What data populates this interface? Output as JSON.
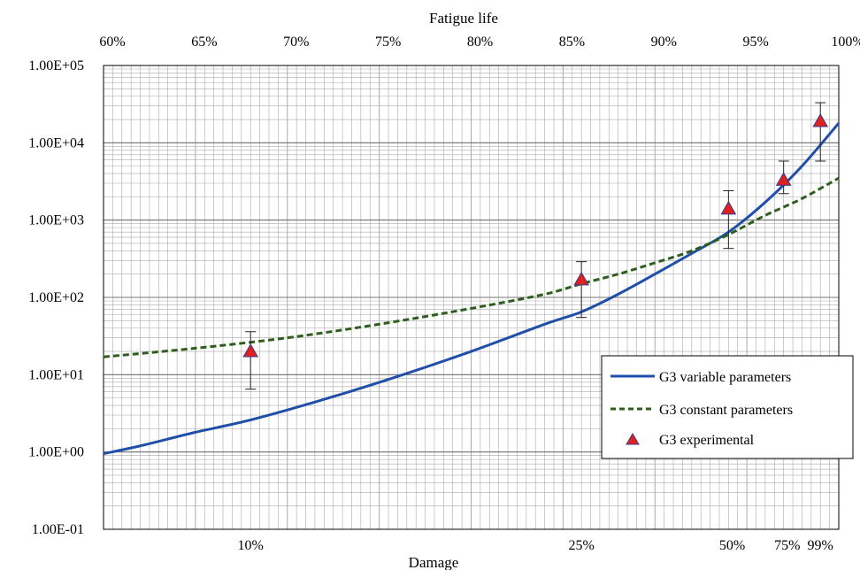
{
  "chart_data": {
    "type": "line",
    "xlabel_top": "Fatigue life",
    "xlabel_bottom": "Damage",
    "ylabel": "",
    "y_scale": "log",
    "ylim": [
      0.1,
      100000
    ],
    "xlim": [
      0.6,
      1.0
    ],
    "grid": true,
    "legend_position": "bottom-right",
    "yticks": [
      0.1,
      1,
      10,
      100,
      1000,
      10000,
      100000
    ],
    "ytick_labels": [
      "1.00E-01",
      "1.00E+00",
      "1.00E+01",
      "1.00E+02",
      "1.00E+03",
      "1.00E+04",
      "1.00E+05"
    ],
    "xticks_top": [
      0.6,
      0.65,
      0.7,
      0.75,
      0.8,
      0.85,
      0.9,
      0.95,
      1.0
    ],
    "xtick_labels_top": [
      "60%",
      "65%",
      "70%",
      "75%",
      "80%",
      "85%",
      "90%",
      "95%",
      "100%"
    ],
    "xticks_bottom": [
      0.68,
      0.86,
      0.942,
      0.972,
      0.99
    ],
    "xtick_labels_bottom": [
      "10%",
      "25%",
      "50%",
      "75%",
      "99%"
    ],
    "series": [
      {
        "name": "G3 variable parameters",
        "style": "solid",
        "color": "#1f4fa8",
        "x": [
          0.6,
          0.62,
          0.65,
          0.68,
          0.72,
          0.76,
          0.8,
          0.84,
          0.86,
          0.88,
          0.9,
          0.92,
          0.94,
          0.96,
          0.98,
          1.0
        ],
        "y": [
          0.95,
          1.2,
          1.8,
          2.6,
          4.8,
          9.5,
          20,
          45,
          65,
          110,
          200,
          370,
          700,
          1700,
          5000,
          18000
        ]
      },
      {
        "name": "G3 constant parameters",
        "style": "dashed",
        "color": "#2e5e1e",
        "x": [
          0.6,
          0.65,
          0.7,
          0.75,
          0.8,
          0.84,
          0.86,
          0.88,
          0.9,
          0.92,
          0.94,
          0.96,
          0.98,
          1.0
        ],
        "y": [
          17,
          22,
          30,
          45,
          72,
          110,
          150,
          200,
          280,
          400,
          650,
          1150,
          1900,
          3500
        ]
      },
      {
        "name": "G3 experimental",
        "style": "marker",
        "color": "#e0201c",
        "x": [
          0.68,
          0.86,
          0.94,
          0.97,
          0.99
        ],
        "y": [
          20,
          170,
          1400,
          3300,
          19000
        ],
        "err_low": [
          6.5,
          55,
          430,
          2200,
          5800
        ],
        "err_high": [
          36,
          290,
          2400,
          5800,
          33000
        ]
      }
    ]
  }
}
